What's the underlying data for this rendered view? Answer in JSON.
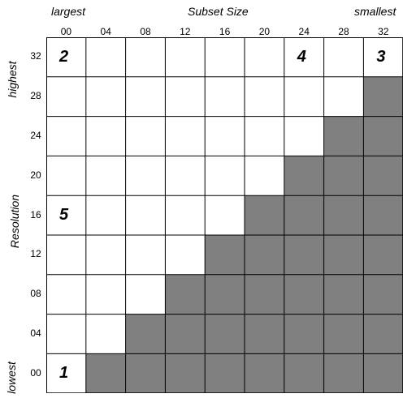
{
  "header": {
    "left_label": "largest",
    "center_label": "Subset Size",
    "right_label": "smallest"
  },
  "axis_side": {
    "top_label": "highest",
    "center_label": "Resolution",
    "bottom_label": "lowest"
  },
  "columns": [
    "00",
    "04",
    "08",
    "12",
    "16",
    "20",
    "24",
    "28",
    "32"
  ],
  "rows": [
    "32",
    "28",
    "24",
    "20",
    "16",
    "12",
    "08",
    "04",
    "00"
  ],
  "shading": {
    "rule": "cell is shaded when column index + row index (rows counted top-down) exceeds 8",
    "color": "#808080"
  },
  "annotations": [
    {
      "row": "32",
      "col": "00",
      "text": "2"
    },
    {
      "row": "32",
      "col": "24",
      "text": "4"
    },
    {
      "row": "32",
      "col": "32",
      "text": "3"
    },
    {
      "row": "16",
      "col": "00",
      "text": "5"
    },
    {
      "row": "00",
      "col": "00",
      "text": "1"
    }
  ]
}
